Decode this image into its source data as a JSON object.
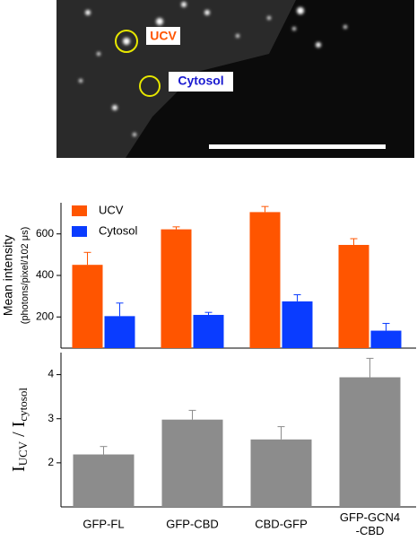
{
  "image": {
    "labels": [
      "UCV",
      "Cytosol"
    ]
  },
  "chart_data": [
    {
      "type": "bar",
      "y_label": "Mean intensity",
      "y_label_sub": "(photons/pixel/102 μs)",
      "ylim": [
        50,
        750
      ],
      "yticks": [
        200,
        400,
        600
      ],
      "legend": "upper left",
      "series": [
        {
          "name": "UCV",
          "color": "#ff5500",
          "values": [
            451,
            622,
            705,
            547
          ],
          "errors": [
            60,
            12,
            27,
            30
          ]
        },
        {
          "name": "Cytosol",
          "color": "#0a3cff",
          "values": [
            204,
            210,
            275,
            134
          ],
          "errors": [
            63,
            12,
            32,
            35
          ]
        }
      ]
    },
    {
      "type": "bar",
      "y_label": {
        "main": "I",
        "sub": "UCV",
        "mid": " / I",
        "sub2": "cytosol"
      },
      "categories": [
        "GFP-FL",
        "GFP-CBD",
        "CBD-GFP",
        "GFP-GCN4\n-CBD"
      ],
      "ylim": [
        1,
        4.5
      ],
      "yticks": [
        2,
        3,
        4
      ],
      "series": [
        {
          "color": "#8c8c8c",
          "values": [
            2.19,
            2.98,
            2.53,
            3.94
          ],
          "errors": [
            0.18,
            0.21,
            0.29,
            0.43
          ]
        }
      ]
    }
  ]
}
